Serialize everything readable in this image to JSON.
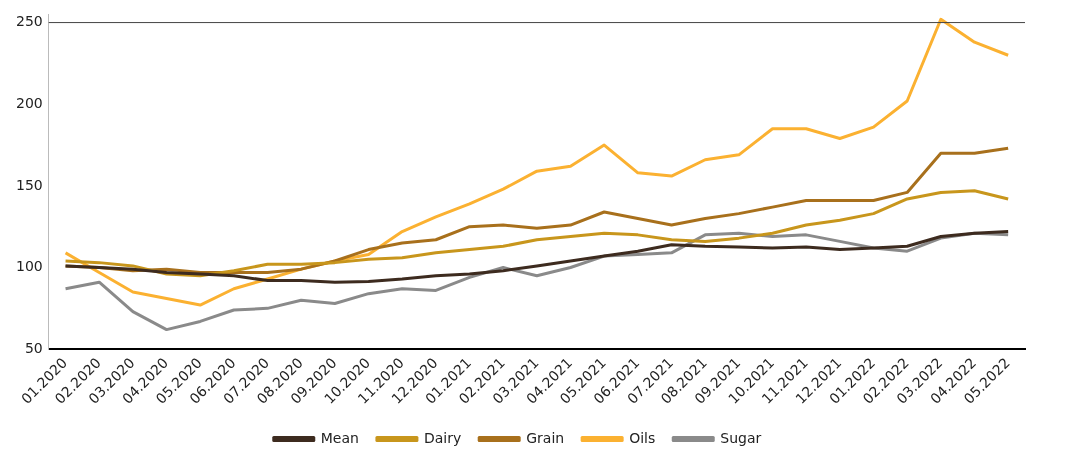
{
  "chart_data": {
    "type": "line",
    "categories": [
      "01.2020",
      "02.2020",
      "03.2020",
      "04.2020",
      "05.2020",
      "06.2020",
      "07.2020",
      "08.2020",
      "09.2020",
      "10.2020",
      "11.2020",
      "12.2020",
      "01.2021",
      "02.2021",
      "03.2021",
      "04.2021",
      "05.2021",
      "06.2021",
      "07.2021",
      "08.2021",
      "09.2021",
      "10.2021",
      "11.2021",
      "12.2021",
      "01.2022",
      "02.2022",
      "03.2022",
      "04.2022",
      "05.2022"
    ],
    "series": [
      {
        "name": "Mean",
        "color": "#3d2b1f",
        "values": [
          101,
          100,
          99,
          97,
          96,
          95,
          92,
          92,
          91,
          91.5,
          93,
          95,
          96,
          98,
          101,
          104,
          107,
          110,
          114,
          113,
          112.5,
          112,
          112.5,
          111,
          112,
          113,
          119,
          121,
          122
        ]
      },
      {
        "name": "Dairy",
        "color": "#c8961c",
        "values": [
          104,
          103,
          101,
          96,
          95,
          98,
          102,
          102,
          103,
          105,
          106,
          109,
          111,
          113,
          117,
          119,
          121,
          120,
          117,
          116,
          118,
          121,
          126,
          129,
          133,
          142,
          146,
          147,
          142
        ]
      },
      {
        "name": "Grain",
        "color": "#a8701c",
        "values": [
          101,
          100,
          98,
          99,
          97,
          97,
          97,
          99,
          104,
          111,
          115,
          117,
          125,
          126,
          124,
          126,
          134,
          130,
          126,
          130,
          133,
          137,
          141,
          141,
          141,
          146,
          170,
          170,
          173
        ]
      },
      {
        "name": "Oils",
        "color": "#fbb131",
        "values": [
          109,
          97,
          85,
          81,
          77,
          87,
          93,
          99,
          104,
          108,
          122,
          131,
          139,
          148,
          159,
          162,
          175,
          158,
          156,
          166,
          169,
          185,
          185,
          179,
          186,
          202,
          252,
          238,
          230
        ]
      },
      {
        "name": "Sugar",
        "color": "#8a8a8a",
        "values": [
          87,
          91,
          73,
          62,
          67,
          74,
          75,
          80,
          78,
          84,
          87,
          86,
          94,
          100,
          95,
          100,
          107,
          108,
          109,
          120,
          121,
          119,
          120,
          116,
          112,
          110,
          118,
          121,
          120
        ]
      }
    ],
    "ylim": [
      50,
      255
    ],
    "yticks": [
      50,
      100,
      150,
      200,
      250
    ],
    "ref_lines": [
      {
        "axis": "y",
        "value": 250,
        "color": "#444444"
      }
    ],
    "grid": false,
    "legend": "bottom",
    "marker": "none",
    "line_style": "solid"
  }
}
